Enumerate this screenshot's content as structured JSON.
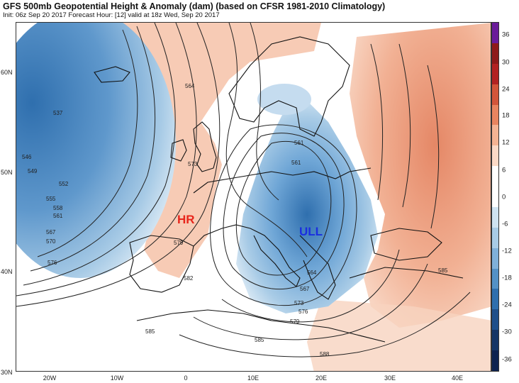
{
  "header": {
    "title": "GFS 500mb Geopotential Height & Anomaly (dam) (based on CFSR 1981-2010 Climatology)",
    "subtitle": "Init: 06z Sep 20 2017   Forecast Hour: [12]   valid at 18z Wed, Sep 20 2017"
  },
  "axes": {
    "lat_labels": [
      "60N",
      "50N",
      "40N",
      "30N"
    ],
    "lon_labels": [
      "20W",
      "10W",
      "0",
      "10E",
      "20E",
      "30E",
      "40E"
    ]
  },
  "annotations": {
    "ridge": {
      "text": "HR",
      "color": "#e8251b"
    },
    "low": {
      "text": "ULL",
      "color": "#1a2ee0"
    }
  },
  "contour_labels": [
    "537",
    "546",
    "549",
    "552",
    "555",
    "558",
    "561",
    "564",
    "567",
    "570",
    "573",
    "576",
    "579",
    "582",
    "585",
    "588"
  ],
  "colorbar": {
    "labels": [
      "36",
      "30",
      "24",
      "18",
      "12",
      "6",
      "0",
      "-6",
      "-12",
      "-18",
      "-24",
      "-30",
      "-36"
    ],
    "colors": [
      "#6a1b9a",
      "#8e1a1a",
      "#b22222",
      "#d2553a",
      "#e8845f",
      "#f4b393",
      "#fbd9c6",
      "#ffffff",
      "#ffffff",
      "#cfe3f1",
      "#a8cbe6",
      "#7fb0d9",
      "#5391c6",
      "#2f6fae",
      "#1f4f8a",
      "#143566",
      "#0d2350"
    ]
  }
}
